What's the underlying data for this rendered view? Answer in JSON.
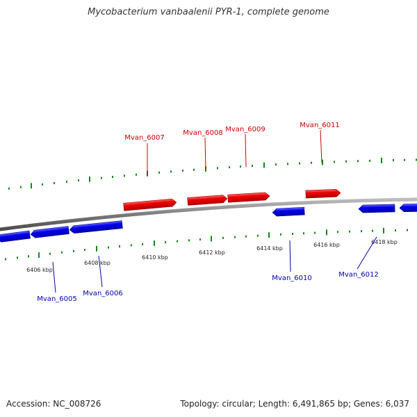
{
  "title": "Mycobacterium vanbaalenii PYR-1, complete genome",
  "footer": {
    "accession": "Accession: NC_008726",
    "summary": "Topology: circular; Length: 6,491,865 bp; Genes: 6,037"
  },
  "colors": {
    "forward": "#ee0000",
    "reverse": "#0000ee",
    "label_forward": "#cc0000",
    "label_reverse": "#0000aa",
    "tick": "#118811",
    "backbone": "#888888",
    "scale_text": "#222222"
  },
  "scale": {
    "unit": "kbp",
    "labels": [
      "6406 kbp",
      "6408 kbp",
      "6410 kbp",
      "6412 kbp",
      "6414 kbp",
      "6416 kbp",
      "6418 kbp"
    ]
  },
  "genes": [
    {
      "name": "Mvan_6005",
      "strand": "reverse"
    },
    {
      "name": "Mvan_6006",
      "strand": "reverse"
    },
    {
      "name": "Mvan_6007",
      "strand": "forward"
    },
    {
      "name": "Mvan_6008",
      "strand": "forward"
    },
    {
      "name": "Mvan_6009",
      "strand": "forward"
    },
    {
      "name": "Mvan_6010",
      "strand": "reverse"
    },
    {
      "name": "Mvan_6011",
      "strand": "forward"
    },
    {
      "name": "Mvan_6012",
      "strand": "reverse"
    }
  ]
}
